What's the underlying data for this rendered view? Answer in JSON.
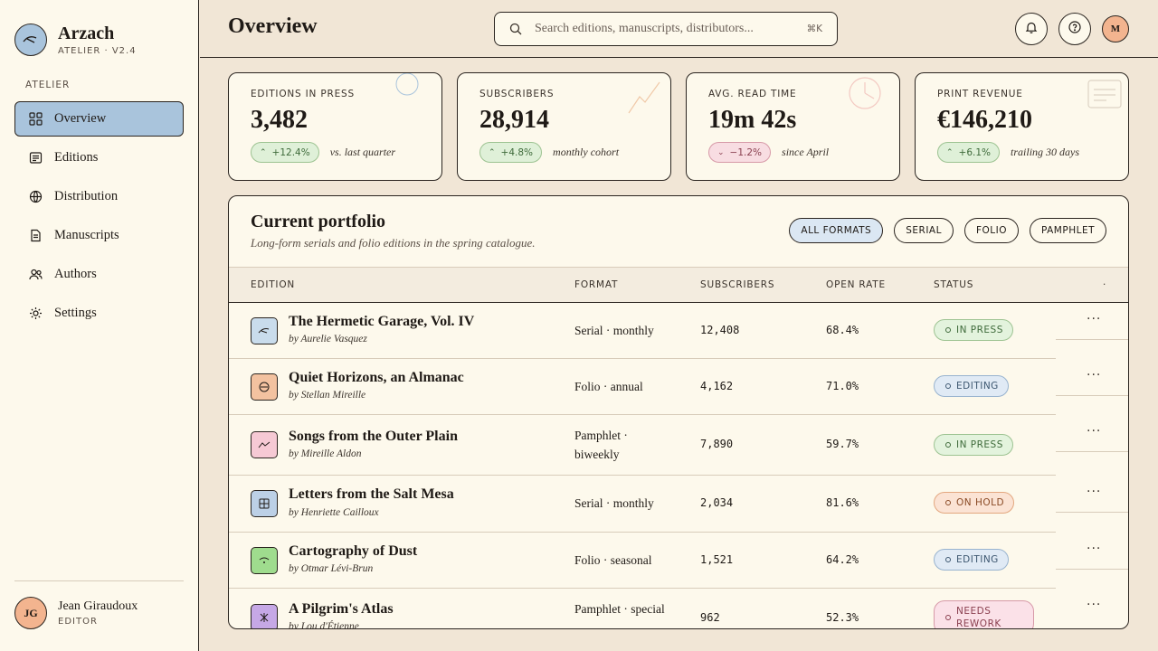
{
  "app": {
    "name": "Arzach",
    "subtitle": "ATELIER · V2.4"
  },
  "sidebar": {
    "section_label": "ATELIER",
    "items": [
      {
        "label": "Overview",
        "icon": "grid-icon",
        "active": true
      },
      {
        "label": "Editions",
        "icon": "edition-icon",
        "active": false
      },
      {
        "label": "Distribution",
        "icon": "globe-icon",
        "active": false
      },
      {
        "label": "Manuscripts",
        "icon": "document-icon",
        "active": false
      },
      {
        "label": "Authors",
        "icon": "users-icon",
        "active": false
      },
      {
        "label": "Settings",
        "icon": "sun-gear-icon",
        "active": false
      }
    ],
    "user": {
      "initials": "JG",
      "name": "Jean Giraudoux",
      "role": "EDITOR"
    }
  },
  "header": {
    "title": "Overview",
    "search_placeholder": "Search editions, manuscripts, distributors...",
    "search_shortcut": "⌘K",
    "avatar_initial": "M"
  },
  "kpis": [
    {
      "label": "EDITIONS IN PRESS",
      "value": "3,482",
      "delta": "+12.4%",
      "direction": "up",
      "note": "vs. last quarter"
    },
    {
      "label": "SUBSCRIBERS",
      "value": "28,914",
      "delta": "+4.8%",
      "direction": "up",
      "note": "monthly cohort"
    },
    {
      "label": "AVG. READ TIME",
      "value": "19m 42s",
      "delta": "−1.2%",
      "direction": "down",
      "note": "since April"
    },
    {
      "label": "PRINT REVENUE",
      "value": "€146,210",
      "delta": "+6.1%",
      "direction": "up",
      "note": "trailing 30 days"
    }
  ],
  "portfolio": {
    "title": "Current portfolio",
    "subtitle": "Long-form serials and folio editions in the spring catalogue.",
    "filters": [
      "ALL FORMATS",
      "SERIAL",
      "FOLIO",
      "PAMPHLET"
    ],
    "active_filter": "ALL FORMATS",
    "columns": [
      "EDITION",
      "FORMAT",
      "SUBSCRIBERS",
      "OPEN RATE",
      "STATUS",
      "·"
    ],
    "rows": [
      {
        "title": "The Hermetic Garage, Vol. IV",
        "author": "by Aurelie Vasquez",
        "format": "Serial · monthly",
        "subscribers": "12,408",
        "open_rate": "68.4%",
        "status": "IN PRESS",
        "icon_color": "#c9dcec"
      },
      {
        "title": "Quiet Horizons, an Almanac",
        "author": "by Stellan Mireille",
        "format": "Folio · annual",
        "subscribers": "4,162",
        "open_rate": "71.0%",
        "status": "EDITING",
        "icon_color": "#f3c2a0"
      },
      {
        "title": "Songs from the Outer Plain",
        "author": "by Mireille Aldon",
        "format": "Pamphlet · biweekly",
        "subscribers": "7,890",
        "open_rate": "59.7%",
        "status": "IN PRESS",
        "icon_color": "#f6c9d4"
      },
      {
        "title": "Letters from the Salt Mesa",
        "author": "by Henriette Cailloux",
        "format": "Serial · monthly",
        "subscribers": "2,034",
        "open_rate": "81.6%",
        "status": "ON HOLD",
        "icon_color": "#bcd0e6"
      },
      {
        "title": "Cartography of Dust",
        "author": "by Otmar Lévi-Brun",
        "format": "Folio · seasonal",
        "subscribers": "1,521",
        "open_rate": "64.2%",
        "status": "EDITING",
        "icon_color": "#9fdc8e"
      },
      {
        "title": "A Pilgrim's Atlas",
        "author": "by Lou d'Étienne",
        "format": "Pamphlet · special",
        "subscribers": "962",
        "open_rate": "52.3%",
        "status": "NEEDS REWORK",
        "icon_color": "#c6a8e6"
      }
    ],
    "row_action": "···"
  }
}
